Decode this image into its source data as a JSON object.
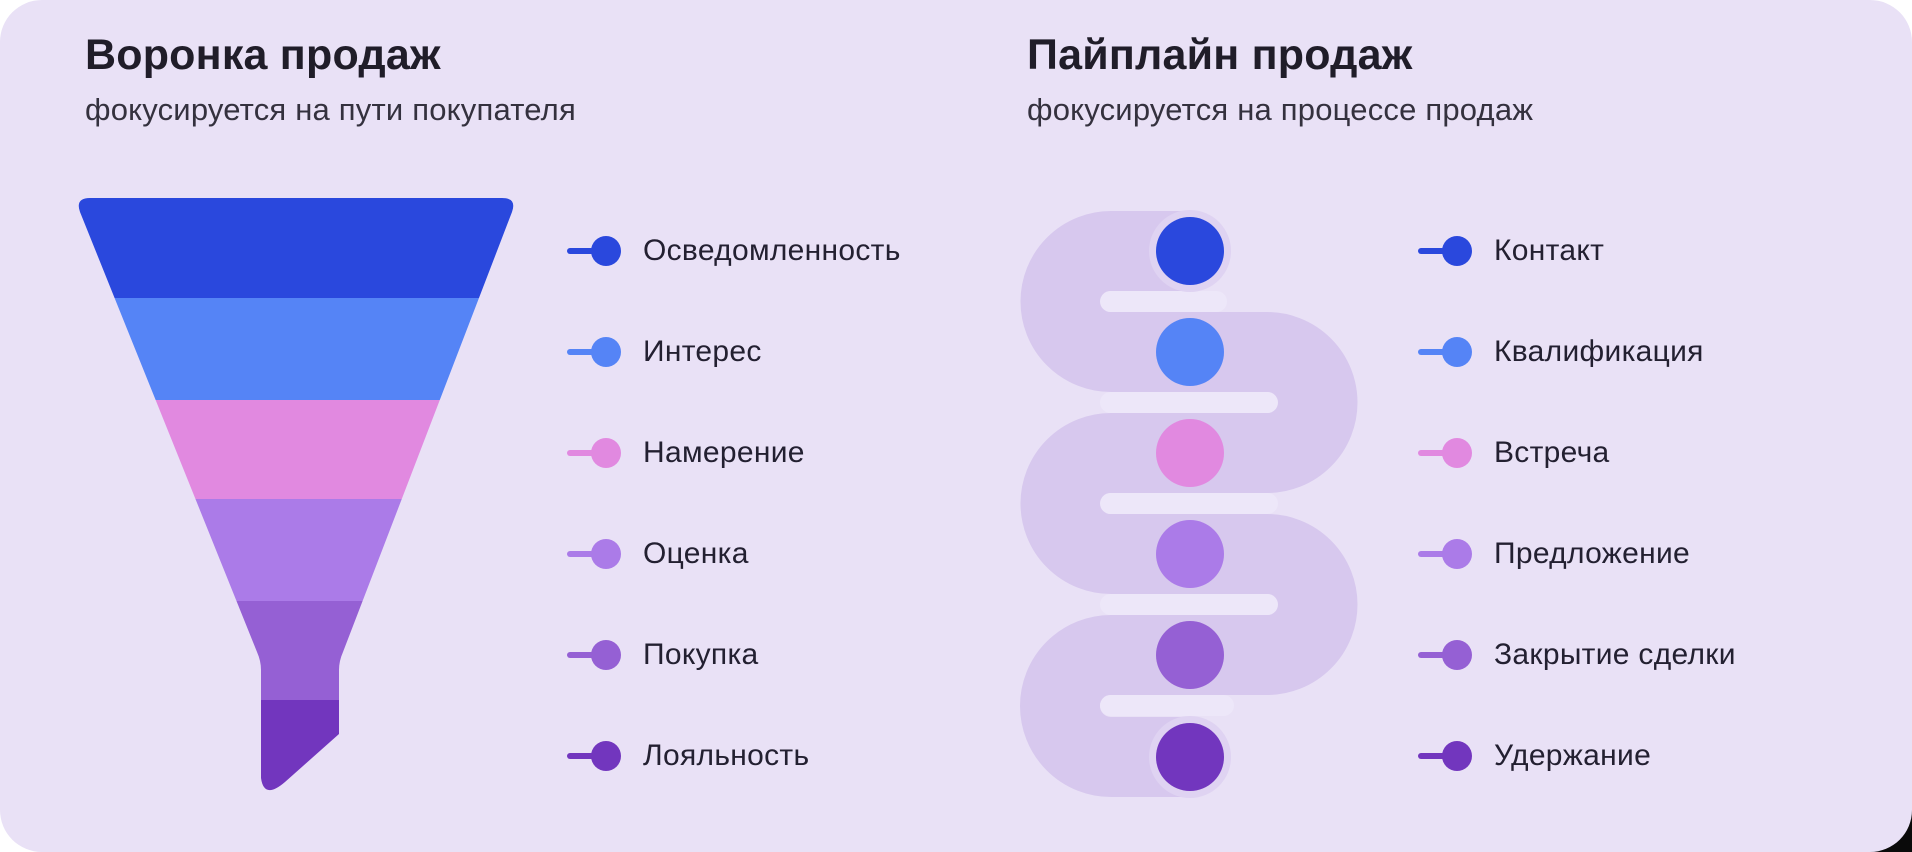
{
  "card": {
    "left": {
      "title": "Воронка продаж",
      "subtitle": "фокусируется на пути покупателя",
      "stages": [
        {
          "label": "Осведомленность",
          "color": "#2A48DD"
        },
        {
          "label": "Интерес",
          "color": "#5584F6"
        },
        {
          "label": "Намерение",
          "color": "#E189E0"
        },
        {
          "label": "Оценка",
          "color": "#AB7BE8"
        },
        {
          "label": "Покупка",
          "color": "#9560D4"
        },
        {
          "label": "Лояльность",
          "color": "#7236BE"
        }
      ]
    },
    "right": {
      "title": "Пайплайн продаж",
      "subtitle": "фокусируется на процессе продаж",
      "stages": [
        {
          "label": "Контакт",
          "color": "#2A48DD"
        },
        {
          "label": "Квалификация",
          "color": "#5584F6"
        },
        {
          "label": "Встреча",
          "color": "#E189E0"
        },
        {
          "label": "Предложение",
          "color": "#AB7BE8"
        },
        {
          "label": "Закрытие сделки",
          "color": "#9560D4"
        },
        {
          "label": "Удержание",
          "color": "#7236BE"
        }
      ]
    },
    "colors": {
      "background": "#E9E1F6",
      "pipe": "#D7C8EE",
      "pipe_gap": "#EDE7F9",
      "pipe_end_cap": "#DFD3F2",
      "text": "#232031"
    }
  }
}
